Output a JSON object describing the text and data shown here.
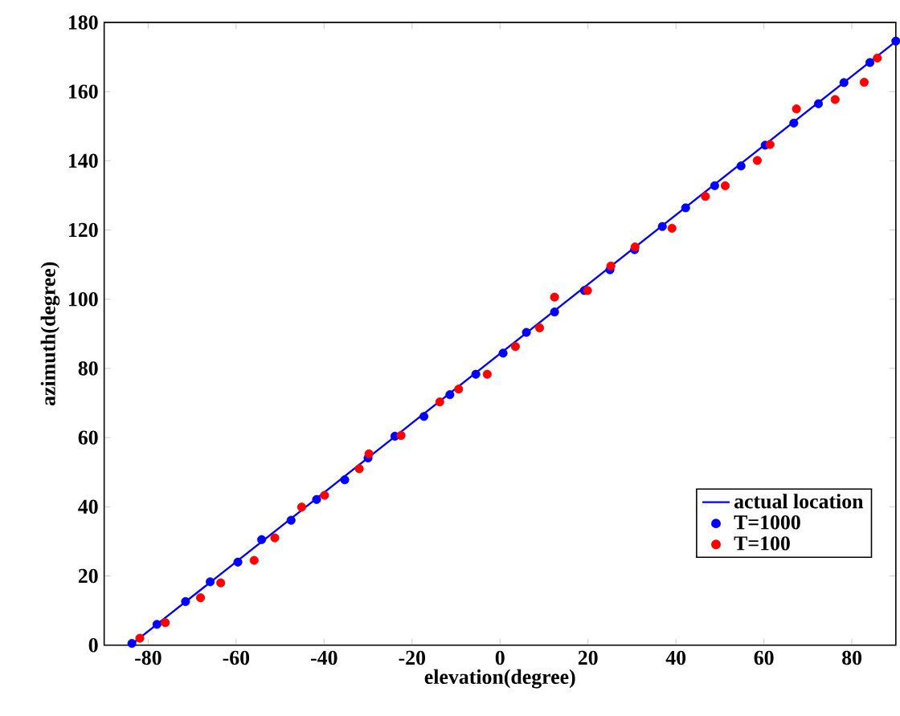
{
  "chart_data": {
    "type": "scatter",
    "xlabel": "elevation(degree)",
    "ylabel": "azimuth(degree)",
    "xlim": [
      -90,
      90
    ],
    "ylim": [
      0,
      180
    ],
    "xticks": [
      -80,
      -60,
      -40,
      -20,
      0,
      20,
      40,
      60,
      80
    ],
    "yticks": [
      0,
      20,
      40,
      60,
      80,
      100,
      120,
      140,
      160,
      180
    ],
    "grid": false,
    "legend": "bottom right",
    "series": [
      {
        "name": "actual location",
        "type": "line",
        "line_style": "solid",
        "color": "#0000ff",
        "x": [
          -84,
          90
        ],
        "values": [
          0,
          174.5
        ]
      },
      {
        "name": "T=1000",
        "marker": "circle",
        "color": "#0000ff",
        "x": [
          -83.7,
          -78.0,
          -71.5,
          -65.9,
          -59.6,
          -54.2,
          -47.5,
          -41.7,
          -35.3,
          -30.0,
          -23.9,
          -17.3,
          -11.4,
          -5.5,
          0.7,
          6.0,
          12.4,
          19.2,
          25.0,
          30.6,
          36.9,
          42.2,
          48.8,
          54.8,
          60.3,
          66.8,
          72.4,
          78.2,
          84.1,
          90.0
        ],
        "values": [
          0.5,
          6.0,
          12.6,
          18.3,
          24.0,
          30.5,
          36.1,
          42.1,
          47.8,
          54.1,
          60.4,
          66.1,
          72.4,
          78.3,
          84.4,
          90.4,
          96.3,
          102.5,
          108.5,
          114.3,
          121.0,
          126.4,
          132.8,
          138.5,
          144.5,
          150.9,
          156.5,
          162.6,
          168.4,
          174.6
        ]
      },
      {
        "name": "T=100",
        "marker": "circle",
        "color": "#ff0000",
        "x": [
          -81.9,
          -76.1,
          -68.1,
          -63.5,
          -55.9,
          -51.2,
          -45.1,
          -39.9,
          -32.0,
          -29.8,
          -22.5,
          -13.7,
          -9.4,
          -2.9,
          3.5,
          9.0,
          12.4,
          19.9,
          25.2,
          30.7,
          39.1,
          46.7,
          51.2,
          58.5,
          61.4,
          67.4,
          76.2,
          82.8,
          85.8
        ],
        "values": [
          2.0,
          6.5,
          13.7,
          18.0,
          24.5,
          31.0,
          39.9,
          43.3,
          51.0,
          55.3,
          60.6,
          70.3,
          74.0,
          78.3,
          86.3,
          91.7,
          100.6,
          102.5,
          109.6,
          115.1,
          120.5,
          129.7,
          132.8,
          140.1,
          144.7,
          155.0,
          157.7,
          162.7,
          169.7
        ]
      }
    ]
  }
}
